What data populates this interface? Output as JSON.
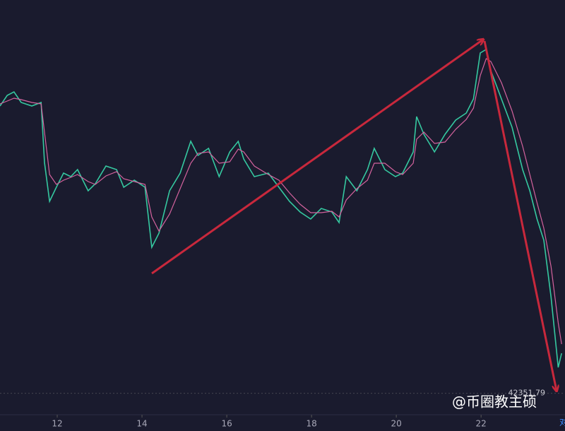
{
  "chart_data": {
    "type": "line",
    "x": [
      10.65,
      10.82,
      10.98,
      11.15,
      11.4,
      11.62,
      11.7,
      11.82,
      11.98,
      12.15,
      12.32,
      12.48,
      12.73,
      12.9,
      13.15,
      13.4,
      13.57,
      13.82,
      14.07,
      14.23,
      14.4,
      14.65,
      14.9,
      15.15,
      15.32,
      15.57,
      15.82,
      16.07,
      16.27,
      16.4,
      16.65,
      16.98,
      17.23,
      17.48,
      17.73,
      17.98,
      18.23,
      18.48,
      18.65,
      18.82,
      19.07,
      19.32,
      19.48,
      19.73,
      19.98,
      20.15,
      20.4,
      20.48,
      20.65,
      20.9,
      21.15,
      21.4,
      21.65,
      21.82,
      21.98,
      22.12,
      22.23,
      22.48,
      22.73,
      22.98,
      23.15,
      23.32,
      23.48,
      23.65,
      23.82,
      23.9
    ],
    "series": [
      {
        "color": "#35c8a0",
        "values": [
          44385,
          44460,
          44485,
          44410,
          44385,
          44410,
          43985,
          43710,
          43810,
          43910,
          43885,
          43935,
          43785,
          43835,
          43960,
          43935,
          43810,
          43860,
          43810,
          43385,
          43485,
          43785,
          43910,
          44135,
          44035,
          44085,
          43885,
          44060,
          44135,
          44010,
          43885,
          43910,
          43810,
          43710,
          43635,
          43585,
          43660,
          43635,
          43560,
          43885,
          43785,
          43935,
          44085,
          43935,
          43885,
          43910,
          44060,
          44310,
          44185,
          44060,
          44185,
          44285,
          44335,
          44435,
          44760,
          44785,
          44635,
          44435,
          44235,
          43935,
          43785,
          43585,
          43435,
          43035,
          42535,
          42635
        ]
      },
      {
        "color": "#d4639e",
        "values": [
          44400,
          44420,
          44440,
          44430,
          44410,
          44400,
          44200,
          43900,
          43830,
          43860,
          43880,
          43900,
          43850,
          43830,
          43890,
          43920,
          43870,
          43850,
          43830,
          43600,
          43500,
          43620,
          43800,
          43980,
          44050,
          44060,
          43980,
          43990,
          44080,
          44060,
          43960,
          43900,
          43860,
          43770,
          43690,
          43630,
          43630,
          43640,
          43600,
          43720,
          43800,
          43860,
          43980,
          43980,
          43920,
          43900,
          43980,
          44150,
          44200,
          44120,
          44130,
          44220,
          44290,
          44370,
          44600,
          44720,
          44700,
          44550,
          44350,
          44100,
          43900,
          43700,
          43520,
          43250,
          42850,
          42700
        ]
      }
    ],
    "xlim": [
      10.65,
      23.98
    ],
    "ylim": [
      42085,
      45135
    ],
    "xticks": [
      12,
      14,
      16,
      18,
      20,
      22
    ],
    "last_price": 42351.79,
    "watermark": "@币圈教主硕",
    "corner_label": "对"
  }
}
